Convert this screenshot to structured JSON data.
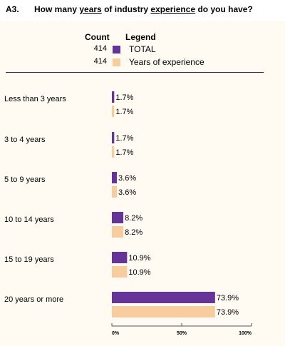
{
  "question": {
    "number": "A3.",
    "text_before": "How many ",
    "text_u1": "years",
    "text_mid": " of industry ",
    "text_u2": "experience",
    "text_after": " do you have?"
  },
  "legend": {
    "count_header": "Count",
    "legend_header": "Legend",
    "entries": [
      {
        "count": "414",
        "label": "TOTAL",
        "color": "#663399"
      },
      {
        "count": "414",
        "label": "Years of experience",
        "color": "#f9cc9d"
      }
    ]
  },
  "chart_data": {
    "type": "bar",
    "orientation": "horizontal",
    "categories": [
      "Less than 3 years",
      "3 to 4 years",
      "5 to 9 years",
      "10 to 14 years",
      "15 to 19 years",
      "20 years or more"
    ],
    "series": [
      {
        "name": "TOTAL",
        "color": "#663399",
        "values": [
          1.7,
          1.7,
          3.6,
          8.2,
          10.9,
          73.9
        ]
      },
      {
        "name": "Years of experience",
        "color": "#f9cc9d",
        "values": [
          1.7,
          1.7,
          3.6,
          8.2,
          10.9,
          73.9
        ]
      }
    ],
    "value_suffix": "%",
    "xlim": [
      0,
      100
    ],
    "xticks": [
      "0%",
      "50%",
      "100%"
    ],
    "grid": false,
    "legend_position": "top"
  }
}
